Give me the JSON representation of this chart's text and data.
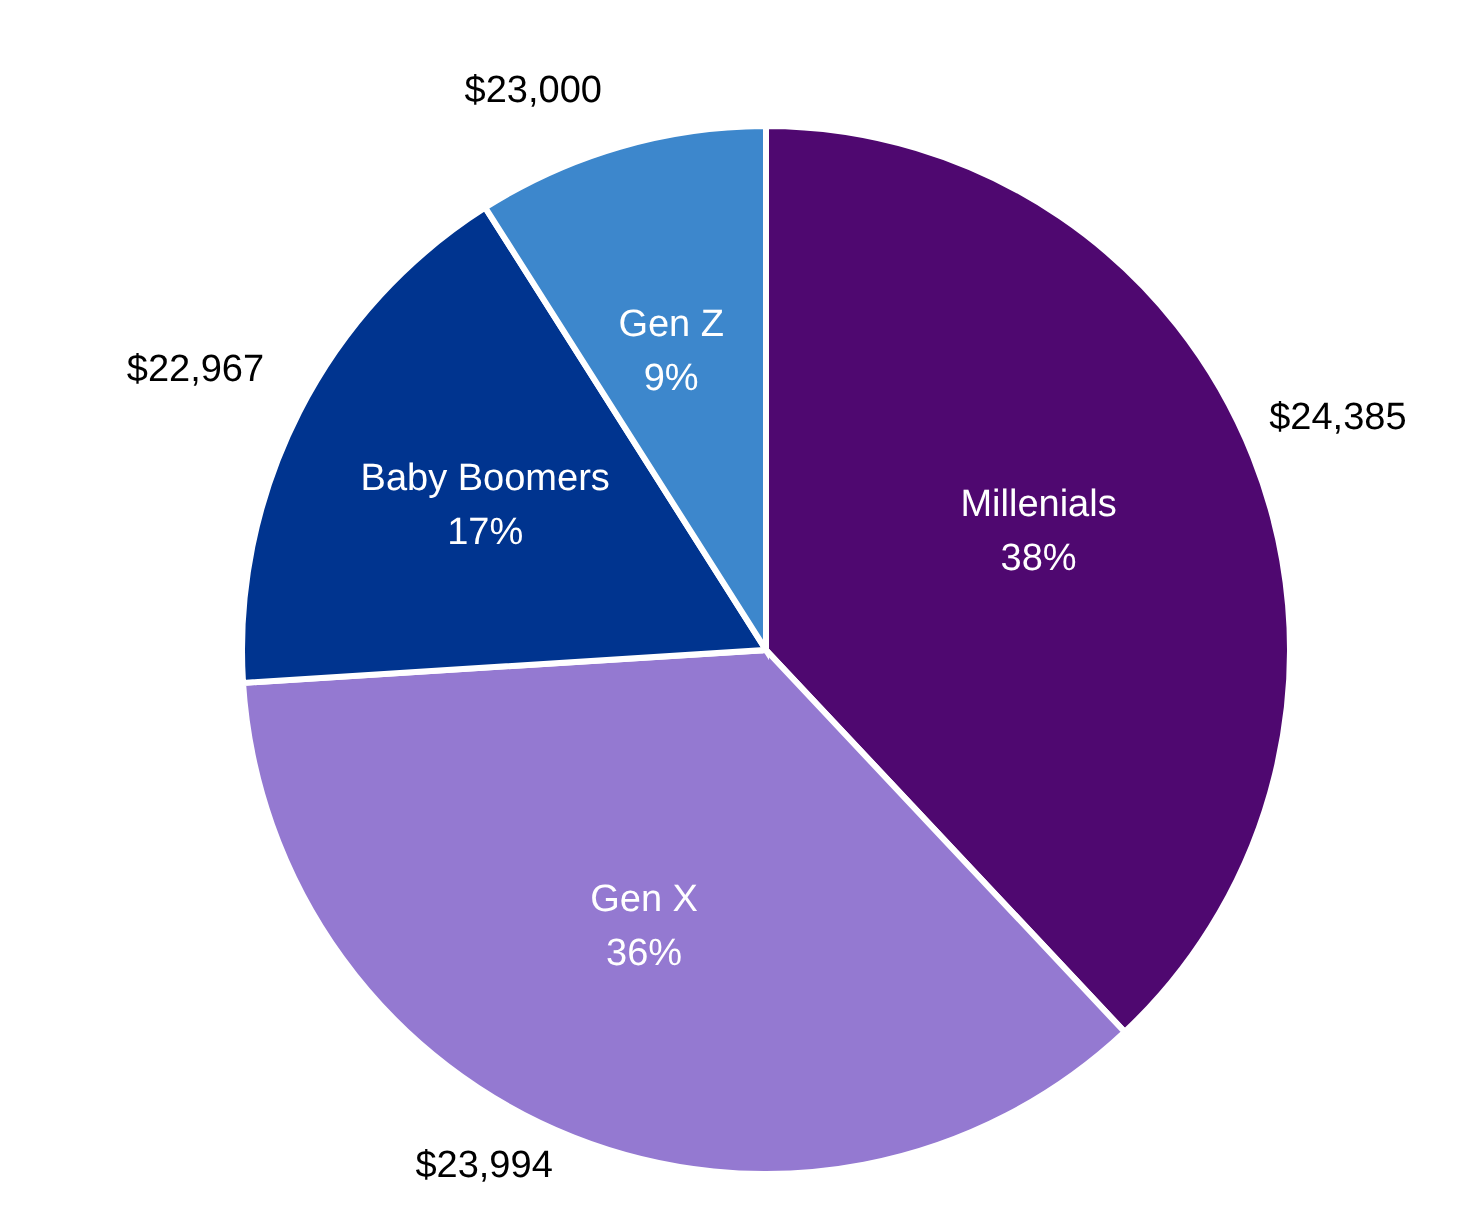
{
  "chart_data": {
    "type": "pie",
    "categories": [
      "Millenials",
      "Gen X",
      "Baby Boomers",
      "Gen Z"
    ],
    "values": [
      38,
      36,
      17,
      9
    ],
    "colors": [
      "#4f0870",
      "#9479d1",
      "#00348f",
      "#3d87cc"
    ],
    "value_labels": [
      "38%",
      "36%",
      "17%",
      "9%"
    ],
    "legend": false,
    "annotations": [
      "$24,385",
      "$23,994",
      "$22,967",
      "$23,000"
    ]
  }
}
